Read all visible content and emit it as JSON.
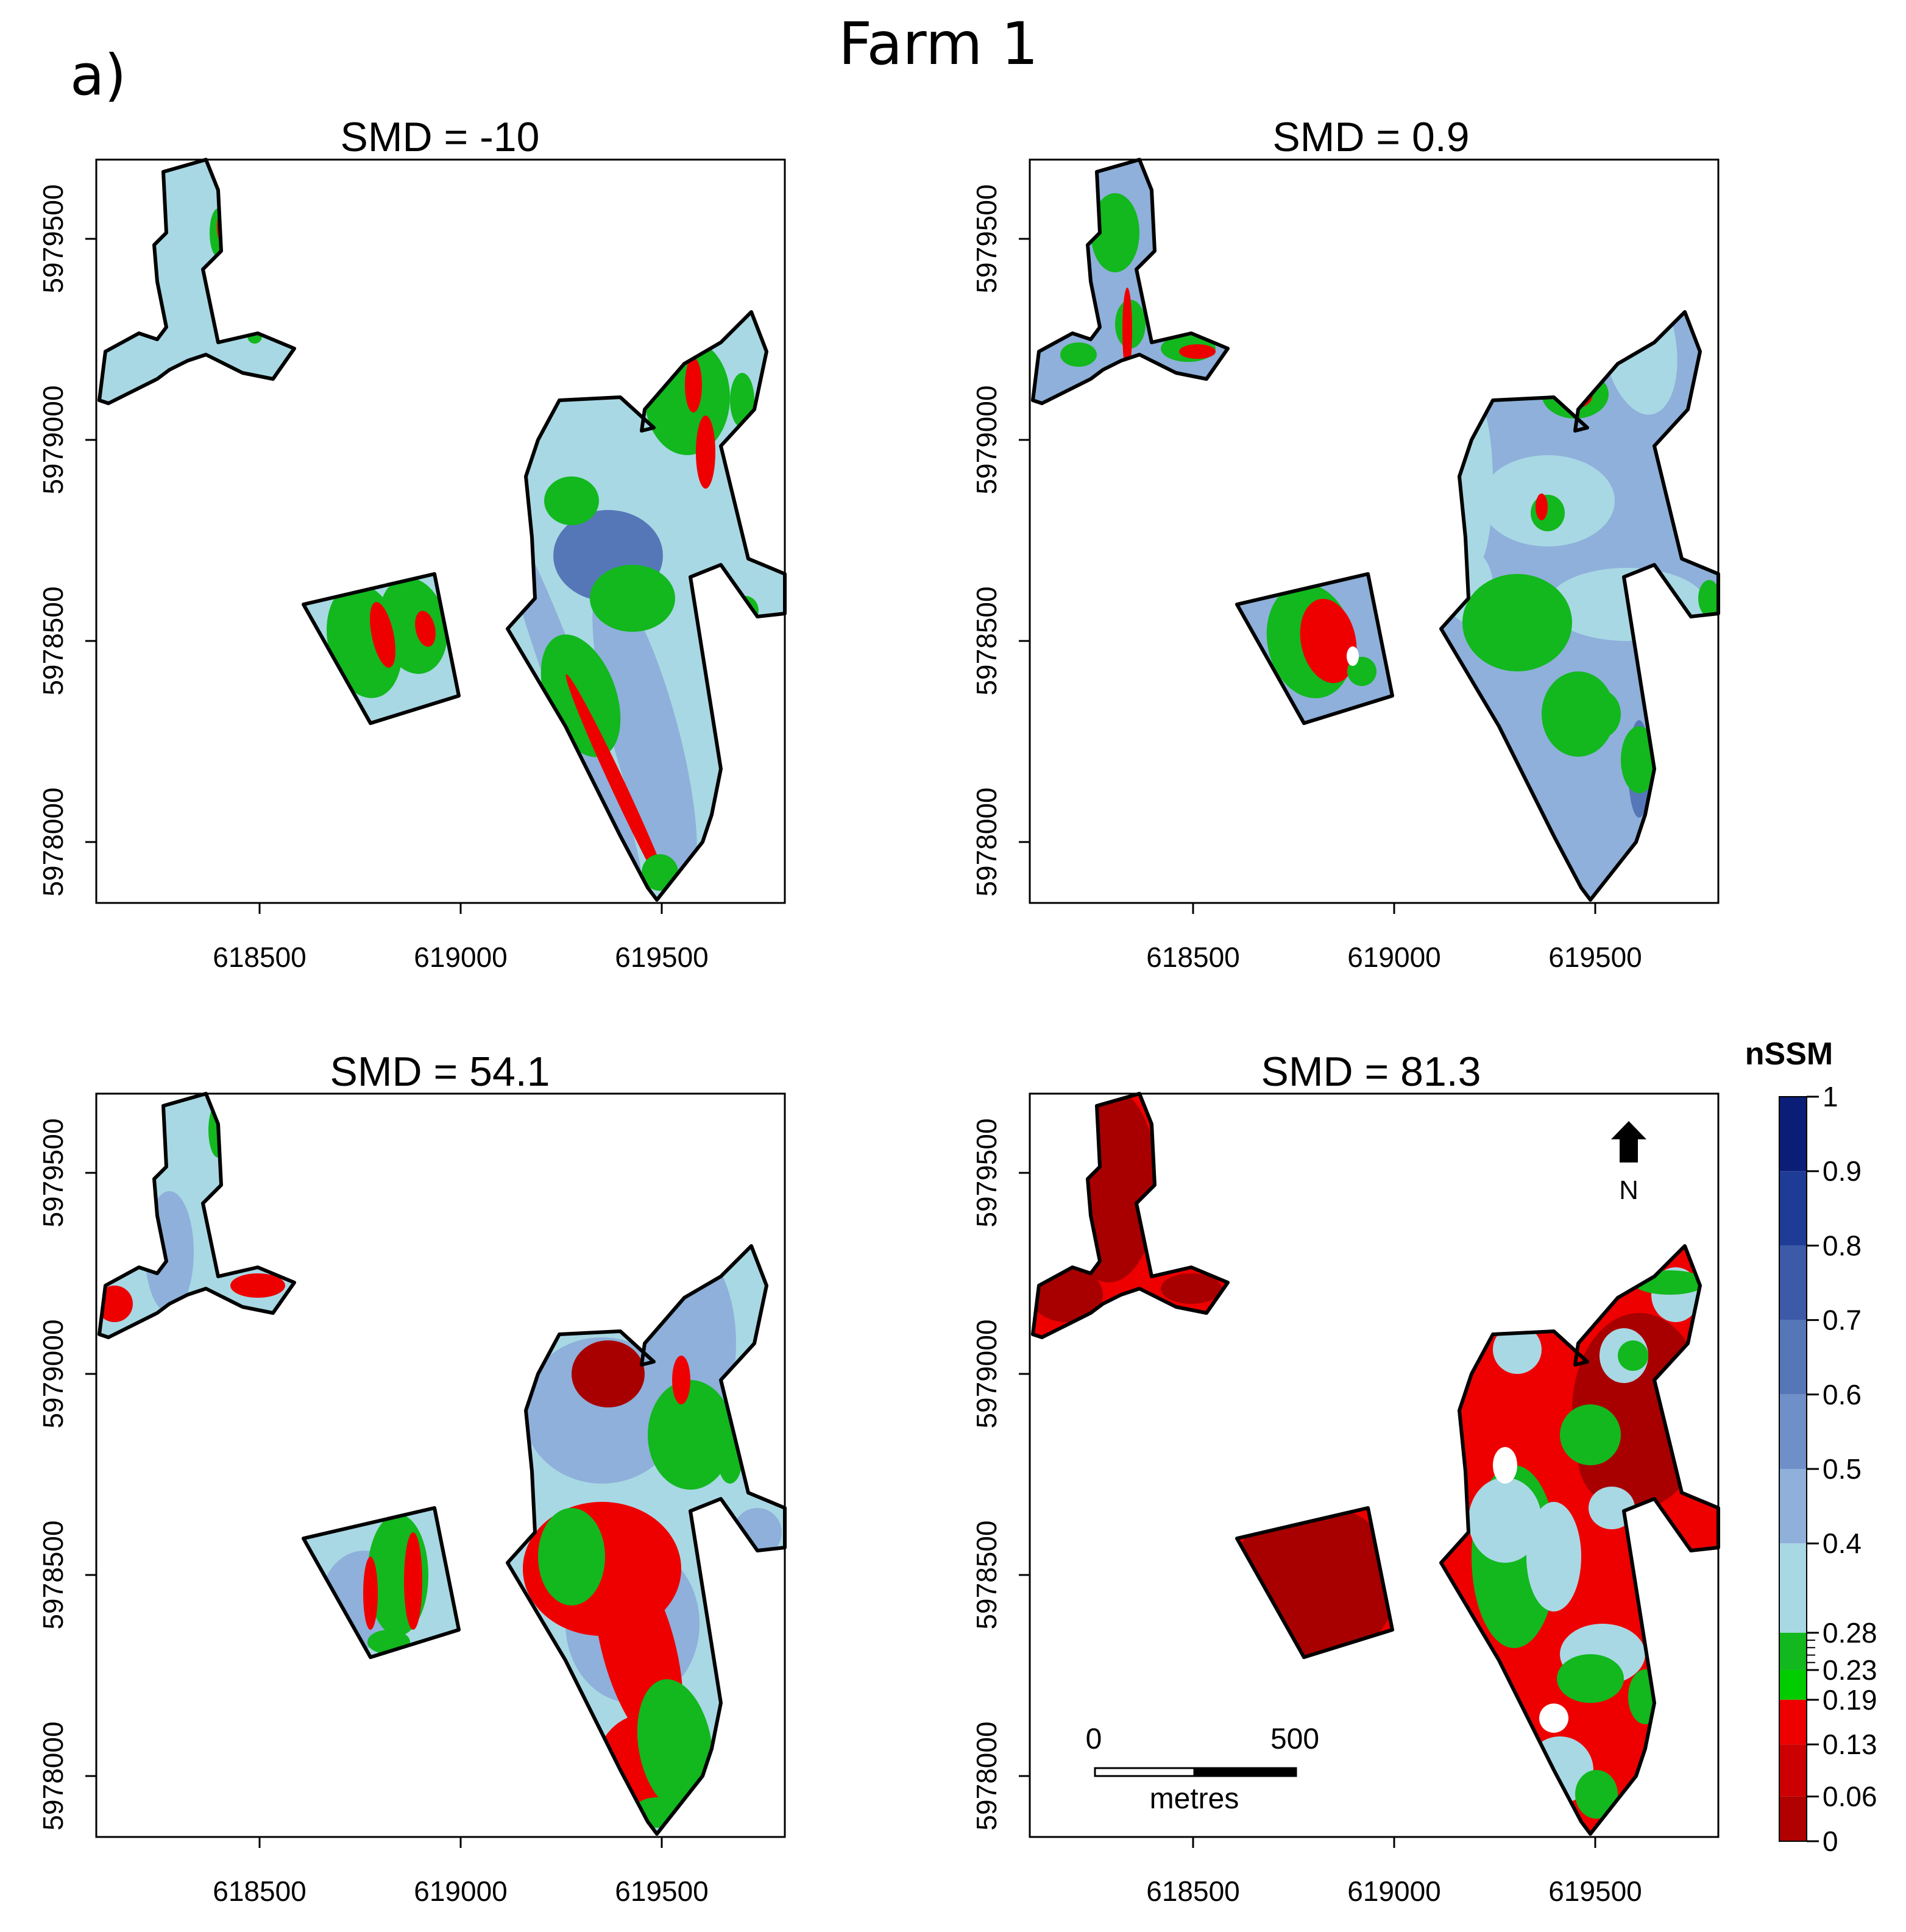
{
  "figure": {
    "panel_label": "a)",
    "title": "Farm 1"
  },
  "panels": [
    {
      "title": "SMD = -10",
      "scheme": "wet"
    },
    {
      "title": "SMD = 0.9",
      "scheme": "wetter"
    },
    {
      "title": "SMD = 54.1",
      "scheme": "mixed"
    },
    {
      "title": "SMD = 81.3",
      "scheme": "dry"
    }
  ],
  "axes": {
    "x_ticks": [
      "618500",
      "619000",
      "619500"
    ],
    "y_ticks": [
      "5978000",
      "5978500",
      "5979000",
      "5979500"
    ]
  },
  "legend": {
    "title": "nSSM",
    "ticks": [
      "1",
      "0.9",
      "0.8",
      "0.7",
      "0.6",
      "0.5",
      "0.4",
      "0.28",
      "0.23",
      "0.19",
      "0.13",
      "0.06",
      "0"
    ],
    "colors": [
      "#0a1e78",
      "#1e3c96",
      "#3c5aa8",
      "#5577b8",
      "#6f8fc8",
      "#8eb0da",
      "#a8d8e4",
      "#12b81e",
      "#00cc00",
      "#ee0000",
      "#cc0000",
      "#b00000",
      "#900000"
    ]
  },
  "north_arrow": {
    "label": "N"
  },
  "scale_bar": {
    "start_label": "0",
    "end_label": "500",
    "unit": "metres"
  },
  "class_colors": {
    "light_blue": "#a8d8e4",
    "mid_blue": "#8eb0da",
    "dark_blue": "#5577b8",
    "green": "#12b81e",
    "red": "#ee0000",
    "dark_red": "#a80000",
    "boundary": "#000000"
  }
}
